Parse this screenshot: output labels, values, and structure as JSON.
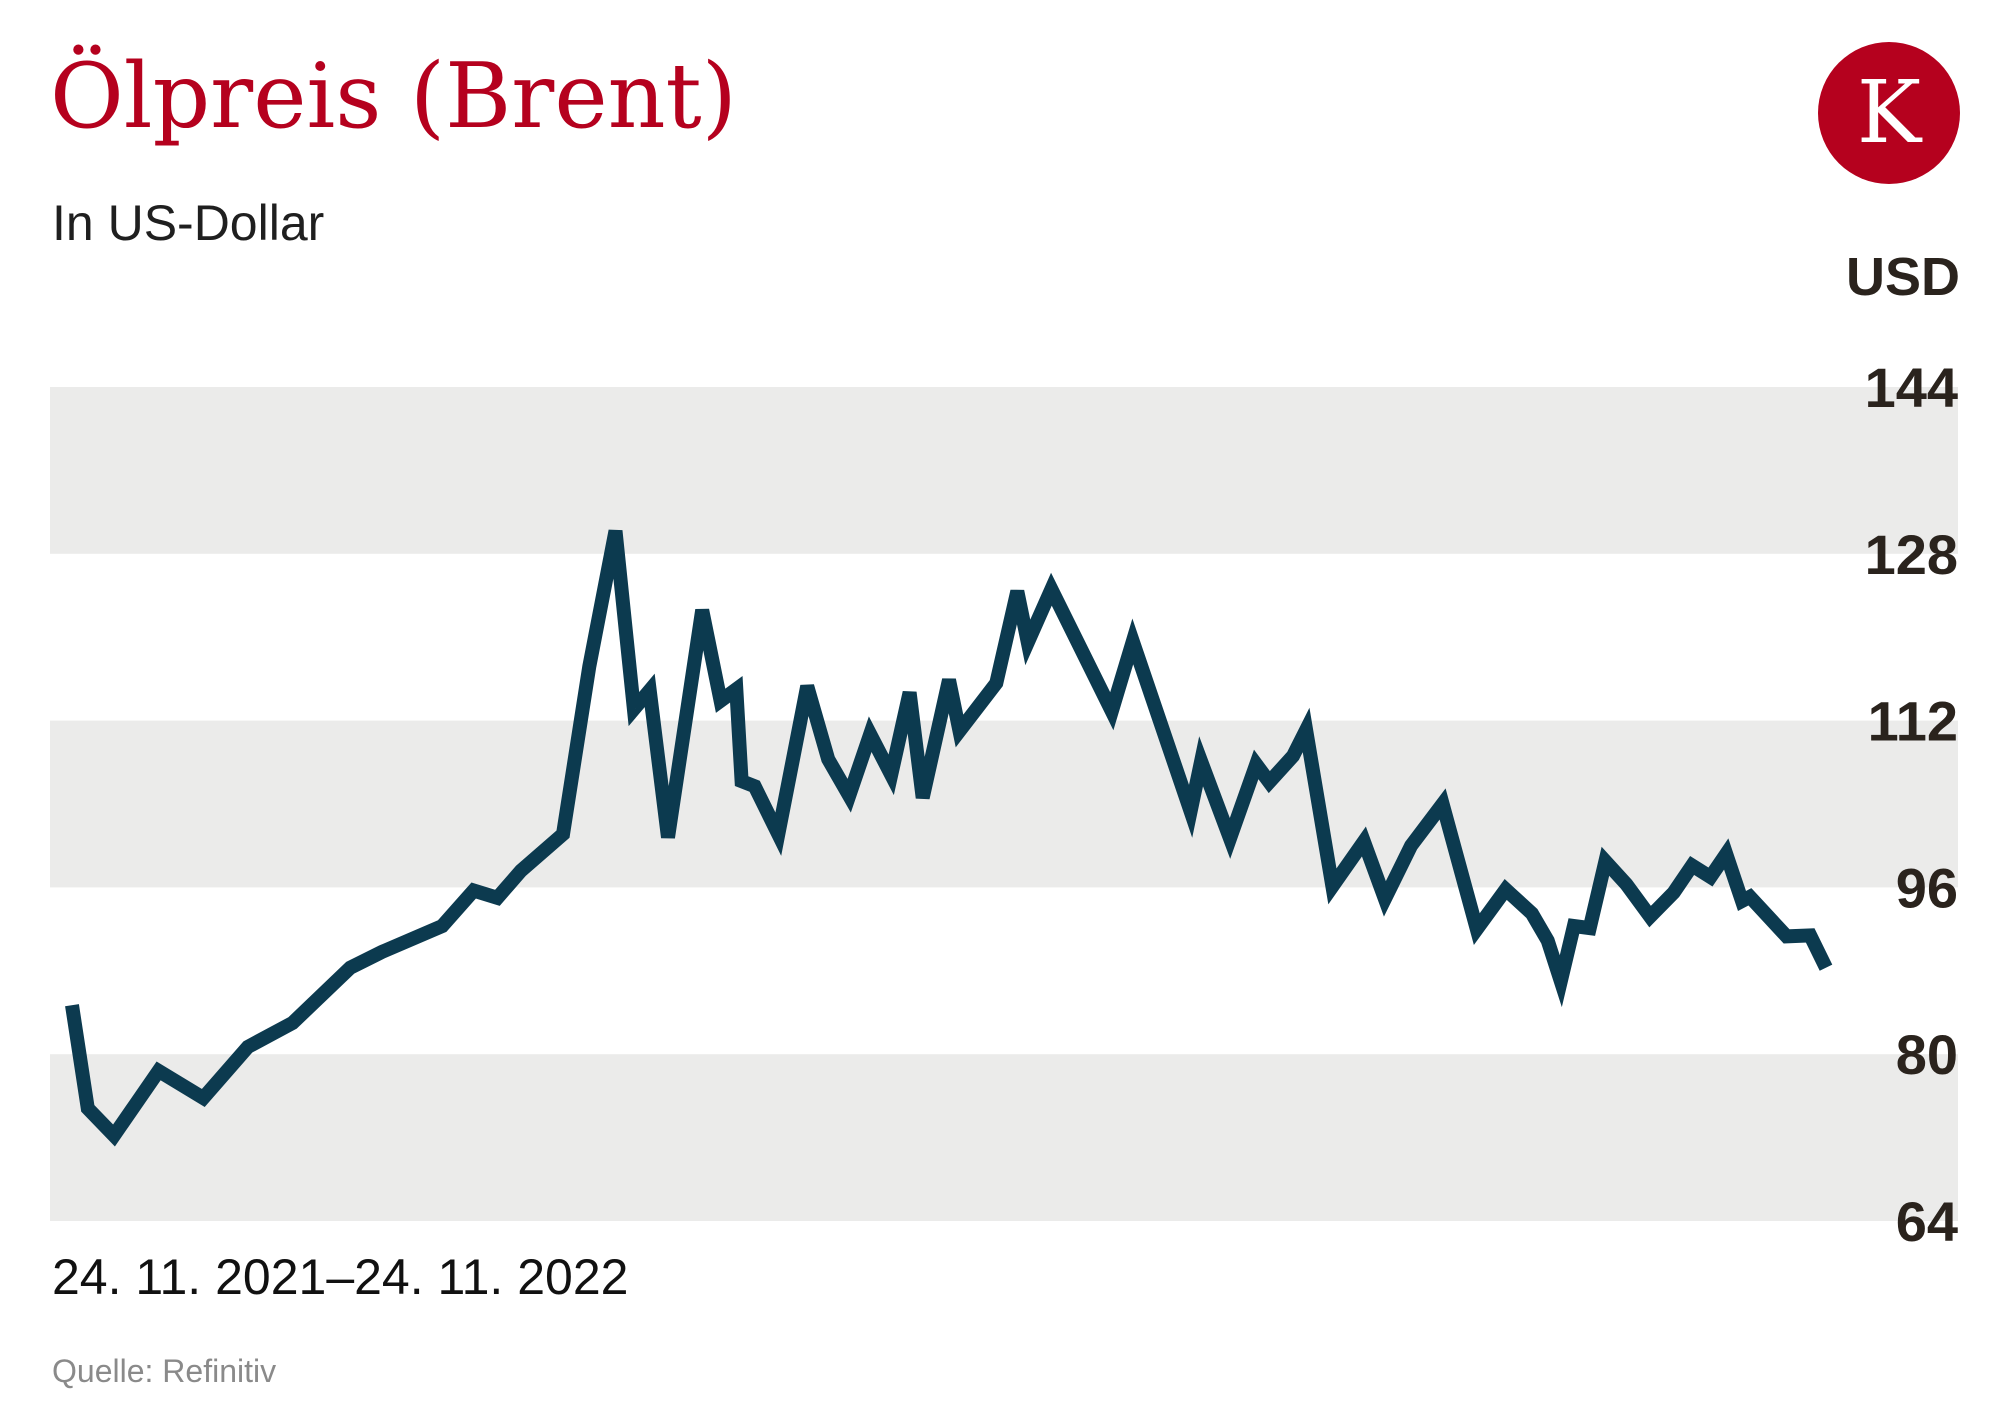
{
  "header": {
    "title": "Ölpreis (Brent)",
    "subtitle": "In US-Dollar",
    "logo_letter": "K"
  },
  "footer": {
    "date_range": "24. 11. 2021–24. 11. 2022",
    "source": "Quelle: Refinitiv"
  },
  "colors": {
    "title": "#b5011e",
    "logo": "#b5011e",
    "line": "#0c3a4f",
    "band": "#ebebea",
    "tick": "#2a231d"
  },
  "chart_data": {
    "type": "line",
    "title": "Ölpreis (Brent)",
    "subtitle": "In US-Dollar",
    "y_unit_label": "USD",
    "ylim": [
      64,
      144
    ],
    "yticks": [
      "144",
      "128",
      "112",
      "96",
      "80",
      "64"
    ],
    "ytick_values": [
      144,
      128,
      112,
      96,
      80,
      64
    ],
    "x_range": [
      "2021-11-24",
      "2022-11-24"
    ],
    "grid": "alternating horizontal bands",
    "series": [
      {
        "values": [
          [
            0,
            84.7
          ],
          [
            6,
            74.8
          ],
          [
            16,
            72.2
          ],
          [
            33,
            78.4
          ],
          [
            50,
            75.8
          ],
          [
            67,
            80.7
          ],
          [
            84,
            83.0
          ],
          [
            106,
            88.3
          ],
          [
            118,
            89.8
          ],
          [
            141,
            92.3
          ],
          [
            153,
            95.7
          ],
          [
            162,
            95.0
          ],
          [
            171,
            97.6
          ],
          [
            187,
            101.1
          ],
          [
            197,
            117.2
          ],
          [
            207,
            130.2
          ],
          [
            214,
            113.1
          ],
          [
            220,
            114.9
          ],
          [
            227,
            100.8
          ],
          [
            240,
            122.6
          ],
          [
            247,
            113.9
          ],
          [
            253,
            115.0
          ],
          [
            255,
            106.2
          ],
          [
            260,
            105.7
          ],
          [
            269,
            101.1
          ],
          [
            280,
            115.3
          ],
          [
            288,
            108.3
          ],
          [
            296,
            104.8
          ],
          [
            304,
            110.7
          ],
          [
            312,
            106.8
          ],
          [
            319,
            114.7
          ],
          [
            324,
            104.6
          ],
          [
            334,
            115.9
          ],
          [
            338,
            111.0
          ],
          [
            352,
            115.6
          ],
          [
            360,
            124.4
          ],
          [
            364,
            119.5
          ],
          [
            373,
            124.6
          ],
          [
            396,
            112.9
          ],
          [
            404,
            119.6
          ],
          [
            426,
            103.3
          ],
          [
            430,
            108.1
          ],
          [
            441,
            100.7
          ],
          [
            451,
            107.8
          ],
          [
            456,
            106.1
          ],
          [
            465,
            108.6
          ],
          [
            470,
            111.1
          ],
          [
            480,
            96.1
          ],
          [
            492,
            100.4
          ],
          [
            500,
            94.9
          ],
          [
            510,
            100.0
          ],
          [
            522,
            104.0
          ],
          [
            535,
            92.0
          ],
          [
            546,
            95.8
          ],
          [
            556,
            93.5
          ],
          [
            562,
            90.9
          ],
          [
            567,
            87.0
          ],
          [
            572,
            92.3
          ],
          [
            578,
            92.1
          ],
          [
            584,
            98.5
          ],
          [
            592,
            96.3
          ],
          [
            601,
            93.2
          ],
          [
            610,
            95.5
          ],
          [
            617,
            98.1
          ],
          [
            624,
            97.0
          ],
          [
            630,
            99.2
          ],
          [
            636,
            94.7
          ],
          [
            639,
            95.1
          ],
          [
            653,
            91.3
          ],
          [
            662,
            91.4
          ],
          [
            668,
            88.3
          ]
        ]
      }
    ]
  }
}
